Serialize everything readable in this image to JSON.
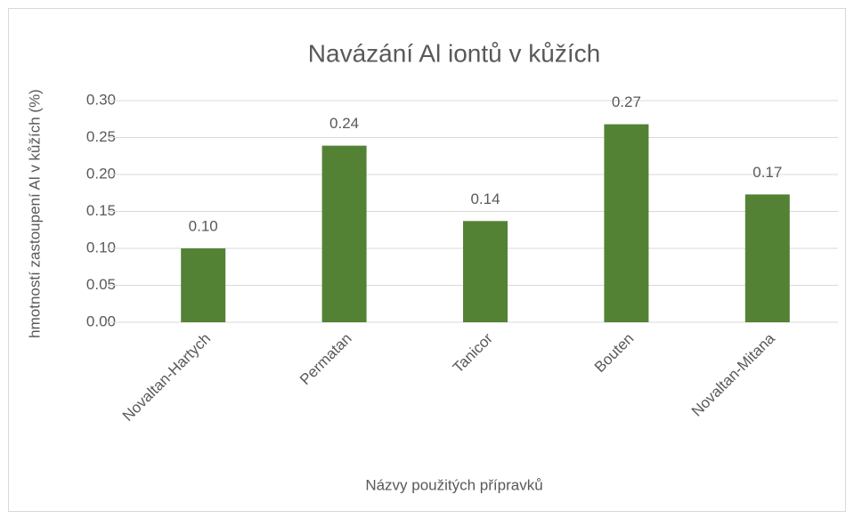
{
  "chart_data": {
    "type": "bar",
    "title": "Navázání Al iontů v kůžích",
    "x_label": "Názvy použitých přípravků",
    "y_label": "hmotností zastoupení Al v kůžích (%)",
    "categories": [
      "Novaltan-Hartych",
      "Permatan",
      "Tanicor",
      "Bouten",
      "Novaltan-Mitana"
    ],
    "values": [
      0.1,
      0.239,
      0.137,
      0.268,
      0.173
    ],
    "value_labels": [
      "0.10",
      "0.24",
      "0.14",
      "0.27",
      "0.17"
    ],
    "color": "#548235",
    "ylim": [
      0,
      0.3
    ],
    "yticks": [
      {
        "value": 0,
        "label": "0.00"
      },
      {
        "value": 0.05,
        "label": "0.05"
      },
      {
        "value": 0.1,
        "label": "0.10"
      },
      {
        "value": 0.15,
        "label": "0.15"
      },
      {
        "value": 0.2,
        "label": "0.20"
      },
      {
        "value": 0.25,
        "label": "0.25"
      },
      {
        "value": 0.3,
        "label": "0.30"
      }
    ],
    "grid": true
  }
}
